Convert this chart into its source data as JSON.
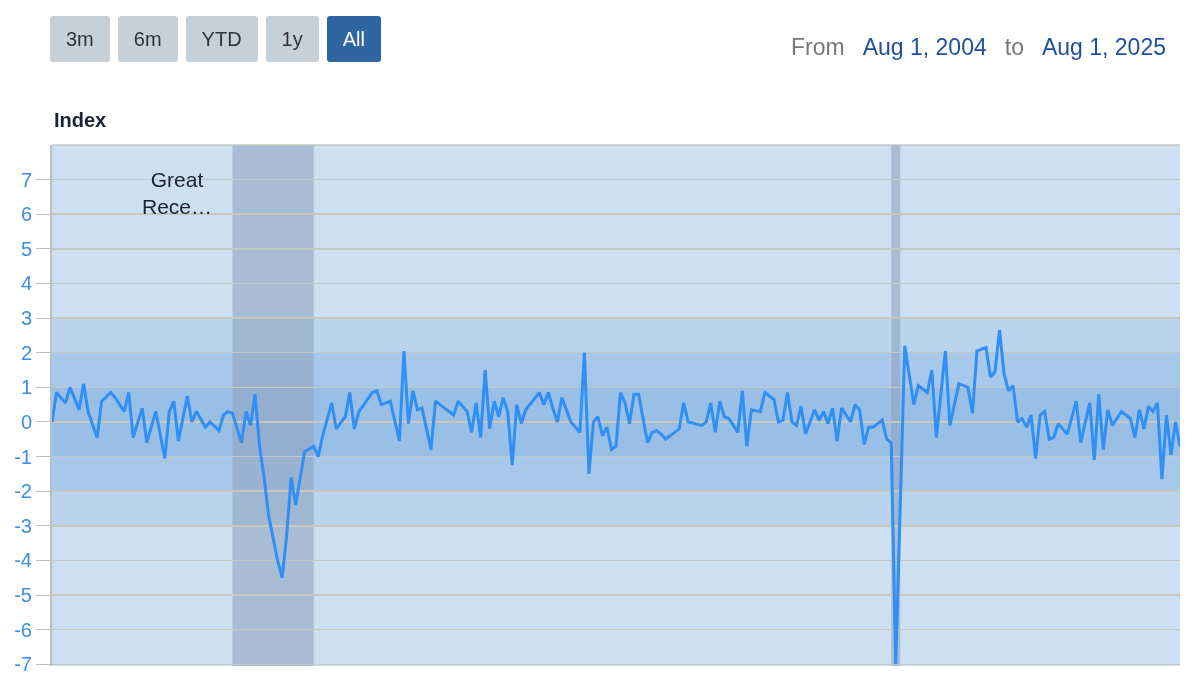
{
  "chart_data": {
    "type": "line",
    "ylabel": "Index",
    "annotations": [
      "3m",
      "6m",
      "YTD",
      "1y",
      "All",
      "From",
      "Aug 1, 2004",
      "to",
      "Aug 1, 2025",
      "Great Rece…"
    ],
    "categories": [
      null,
      null,
      null,
      null,
      null,
      null,
      null,
      null,
      null,
      null,
      null,
      null,
      null,
      null,
      null,
      null,
      null,
      null,
      null,
      null,
      null,
      null,
      null,
      null,
      null,
      null,
      null,
      null,
      null,
      null,
      null,
      null,
      null,
      null,
      null,
      null,
      null,
      null,
      null,
      null,
      null,
      null,
      null,
      null,
      null,
      null,
      null,
      null,
      null,
      null,
      null,
      null,
      null,
      null,
      null,
      null,
      null,
      null,
      null,
      null,
      null,
      null,
      null,
      null,
      null,
      null,
      null,
      null,
      null,
      null,
      null,
      null,
      null,
      null,
      null,
      null,
      null,
      null,
      null,
      null,
      null,
      null,
      null,
      null,
      null,
      null,
      null,
      null,
      null,
      null,
      null,
      null,
      null,
      null,
      null,
      null,
      null,
      null,
      null,
      null,
      null,
      null,
      null,
      null,
      null,
      null,
      null,
      null,
      null,
      null,
      null,
      null,
      null,
      null,
      null,
      null,
      null,
      null,
      null,
      null,
      null,
      null,
      null,
      null,
      null,
      null,
      null,
      null,
      null,
      null,
      null,
      null,
      null,
      null,
      null,
      null,
      null,
      null,
      null,
      null,
      null,
      null,
      null,
      null,
      null,
      null,
      null,
      null,
      null,
      null,
      null,
      null,
      null,
      null,
      null,
      null,
      null,
      null,
      null,
      null,
      null,
      null,
      null,
      null,
      null,
      null,
      null,
      null,
      null,
      null,
      null,
      null,
      null,
      null,
      null,
      null,
      null,
      null,
      null,
      null,
      null,
      null,
      null,
      null,
      null,
      null,
      null,
      null,
      null,
      null,
      null,
      null,
      null,
      null,
      null,
      null,
      null,
      null,
      null,
      null,
      null,
      null,
      null,
      null,
      null,
      null,
      null,
      null,
      null,
      null,
      null,
      null,
      null,
      null,
      null,
      null,
      null,
      null,
      null,
      null,
      null,
      null,
      null,
      null,
      null,
      null,
      null,
      null,
      null,
      null,
      null,
      null,
      null,
      null,
      null,
      null,
      null,
      null,
      null,
      null,
      null,
      null,
      null,
      null,
      null,
      null,
      null,
      null,
      null,
      null,
      null
    ],
    "series": [
      {
        "color": "#2f8ff5",
        "values": [
          0.0,
          0.85,
          0.7,
          0.55,
          1.0,
          0.68,
          0.35,
          1.1,
          0.3,
          -0.08,
          -0.45,
          0.6,
          0.72,
          0.85,
          0.7,
          0.5,
          0.3,
          0.85,
          -0.45,
          -0.02,
          0.4,
          -0.6,
          -0.15,
          0.3,
          -0.38,
          -1.05,
          0.3,
          0.6,
          -0.55,
          0.1,
          0.75,
          0.0,
          0.3,
          0.08,
          -0.15,
          0.0,
          -0.12,
          -0.25,
          0.2,
          0.3,
          0.25,
          -0.18,
          -0.6,
          0.3,
          -0.1,
          0.8,
          -0.7,
          -1.6,
          -2.7,
          -3.35,
          -4.0,
          -4.5,
          -3.3,
          -1.6,
          -2.4,
          -1.62,
          -0.85,
          -0.78,
          -0.7,
          -1.0,
          -0.4,
          0.08,
          0.55,
          -0.2,
          -0.02,
          0.15,
          0.85,
          -0.2,
          0.3,
          0.48,
          0.67,
          0.85,
          0.9,
          0.5,
          0.55,
          0.6,
          0.02,
          -0.55,
          2.05,
          -0.05,
          0.9,
          0.35,
          0.4,
          -0.2,
          -0.8,
          0.6,
          0.5,
          0.4,
          0.3,
          0.2,
          0.6,
          0.45,
          0.3,
          -0.3,
          0.55,
          -0.45,
          1.5,
          -0.2,
          0.6,
          0.15,
          0.7,
          0.3,
          -1.25,
          0.5,
          -0.05,
          0.35,
          0.52,
          0.68,
          0.85,
          0.5,
          0.85,
          0.4,
          0.0,
          0.7,
          0.35,
          0.0,
          -0.15,
          -0.3,
          2.0,
          -1.5,
          0.0,
          0.15,
          -0.4,
          -0.15,
          -0.8,
          -0.7,
          0.85,
          0.55,
          -0.05,
          0.8,
          0.8,
          0.1,
          -0.6,
          -0.3,
          -0.25,
          -0.35,
          -0.5,
          -0.4,
          -0.3,
          -0.2,
          0.55,
          0.0,
          -0.03,
          -0.07,
          -0.1,
          0.0,
          0.55,
          -0.3,
          0.6,
          0.15,
          0.1,
          -0.1,
          -0.3,
          0.9,
          -0.7,
          0.35,
          0.32,
          0.3,
          0.85,
          0.75,
          0.65,
          0.0,
          0.05,
          0.85,
          0.0,
          -0.1,
          0.45,
          -0.35,
          0.0,
          0.35,
          0.05,
          0.3,
          -0.05,
          0.4,
          -0.55,
          0.4,
          0.2,
          0.0,
          0.5,
          0.35,
          -0.65,
          -0.15,
          -0.15,
          -0.05,
          0.05,
          -0.5,
          -0.6,
          -7.0,
          -2.4,
          2.2,
          1.35,
          0.5,
          1.05,
          0.95,
          0.85,
          1.5,
          -0.45,
          0.8,
          2.05,
          -0.1,
          0.5,
          1.1,
          1.05,
          1.0,
          0.25,
          2.05,
          2.1,
          2.15,
          1.3,
          1.45,
          2.65,
          1.4,
          0.9,
          1.05,
          0.0,
          0.1,
          -0.15,
          0.2,
          -1.05,
          0.2,
          0.3,
          -0.5,
          -0.45,
          -0.05,
          -0.2,
          -0.35,
          0.12,
          0.6,
          -0.6,
          -0.02,
          0.55,
          -1.1,
          0.8,
          -0.8,
          0.35,
          -0.1,
          0.1,
          0.3,
          0.2,
          0.1,
          -0.45,
          0.35,
          -0.2,
          0.45,
          0.3,
          0.55,
          -1.65,
          0.2,
          -0.95,
          0.0,
          -0.7
        ]
      }
    ],
    "ylim": [
      -7.05,
      8
    ],
    "yticks": [
      -7,
      -6,
      -5,
      -4,
      -3,
      -2,
      -1,
      0,
      1,
      2,
      3,
      4,
      5,
      6,
      7
    ],
    "tick_labels": "y",
    "grid": "y",
    "marker": "none",
    "line_style": "solid",
    "bands": [
      {
        "axis": "y",
        "from": -3,
        "to": 3,
        "color": "#bad4ee"
      },
      {
        "axis": "y",
        "from": -2,
        "to": 2,
        "color": "#a7c8ea"
      },
      {
        "axis": "y",
        "from": -1,
        "to": 1,
        "color": "#99bfe6"
      }
    ]
  }
}
